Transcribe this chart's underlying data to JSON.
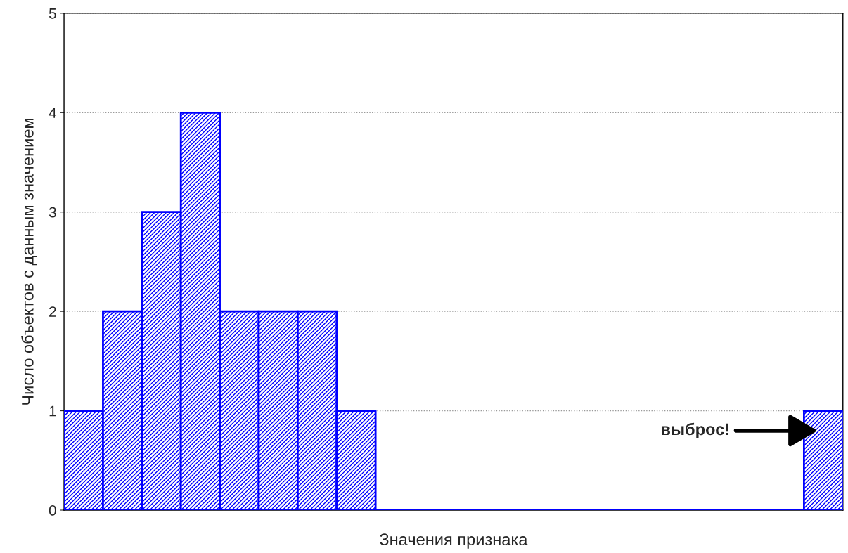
{
  "chart_data": {
    "type": "bar",
    "xlabel": "Значения признака",
    "ylabel": "Число объектов с данным значением",
    "categories": [
      null,
      null,
      null,
      null,
      null,
      null,
      null,
      null,
      null,
      null,
      null,
      null,
      null,
      null,
      null,
      null,
      null,
      null,
      null,
      null
    ],
    "values": [
      1,
      2,
      3,
      4,
      2,
      2,
      2,
      1,
      0,
      0,
      0,
      0,
      0,
      0,
      0,
      0,
      0,
      0,
      0,
      1
    ],
    "color": "#0000ff",
    "ylim": [
      0,
      5
    ],
    "yticks": [
      0,
      1,
      2,
      3,
      4,
      5
    ],
    "grid": "y",
    "tick_labels": "y",
    "annotations": [
      "выброс!"
    ]
  }
}
